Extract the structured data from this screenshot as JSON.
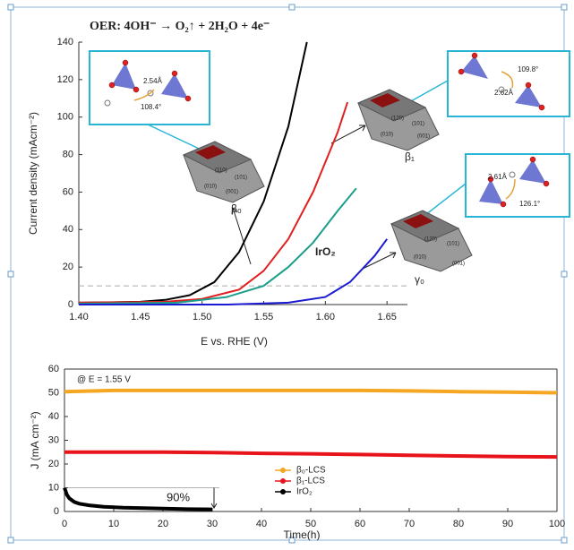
{
  "chart_data": [
    {
      "type": "line",
      "title": "OER: 4OH⁻ → O₂↑ + 2H₂O + 4e⁻",
      "x_label": "E vs. RHE (V)",
      "y_label": "Current density (mAcm⁻²)",
      "xlim": [
        1.4,
        1.7
      ],
      "xticks": [
        {
          "value": 1.4,
          "label": "1.40"
        },
        1.45,
        {
          "value": 1.5,
          "label": "1.50"
        },
        1.55,
        {
          "value": 1.6,
          "label": "1.60"
        },
        1.65
      ],
      "ylim": [
        0,
        140
      ],
      "yticks": [
        0,
        20,
        40,
        60,
        80,
        100,
        120,
        140
      ],
      "hline": 10,
      "series": [
        {
          "color": "#000000",
          "x": [
            1.4,
            1.45,
            1.47,
            1.49,
            1.51,
            1.53,
            1.55,
            1.57,
            1.585
          ],
          "values": [
            1,
            1.5,
            2.5,
            5,
            12,
            28,
            55,
            95,
            140
          ]
        },
        {
          "color": "#e02020",
          "x": [
            1.4,
            1.47,
            1.5,
            1.53,
            1.55,
            1.57,
            1.59,
            1.61,
            1.618
          ],
          "values": [
            1,
            1.5,
            3,
            8,
            18,
            35,
            60,
            92,
            108
          ]
        },
        {
          "color": "#1a9e8a",
          "x": [
            1.4,
            1.48,
            1.52,
            1.55,
            1.57,
            1.59,
            1.61,
            1.625
          ],
          "values": [
            0.5,
            1,
            4,
            10,
            20,
            33,
            50,
            62
          ]
        },
        {
          "color": "#1a1ad0",
          "x": [
            1.4,
            1.52,
            1.57,
            1.6,
            1.62,
            1.64,
            1.65
          ],
          "values": [
            0,
            0,
            1,
            4,
            12,
            26,
            35
          ]
        }
      ],
      "annotations": [
        "β₀",
        "β₁",
        "γ₀",
        "IrO₂",
        "2.54Å",
        "108.4°",
        "109.8°",
        "2.62Å",
        "2.61Å",
        "126.1°",
        "(110)",
        "(101)",
        "(010)",
        "(001)",
        "(120)",
        "(101)",
        "(010)",
        "(001)",
        "(120)",
        "(101)",
        "(010)",
        "(001)"
      ]
    },
    {
      "type": "line",
      "annotation": "@ E = 1.55 V",
      "note": "90%",
      "x_label": "Time(h)",
      "y_label": "J (mA cm⁻²)",
      "xlim": [
        0,
        100
      ],
      "xticks": [
        0,
        10,
        20,
        30,
        40,
        50,
        60,
        70,
        80,
        90,
        100
      ],
      "ylim": [
        0,
        60
      ],
      "yticks": [
        0,
        10,
        20,
        30,
        40,
        50,
        60
      ],
      "legend": "center",
      "series": [
        {
          "name": "β₀-LCS",
          "color": "#f5a623",
          "x": [
            0,
            10,
            20,
            30,
            40,
            50,
            60,
            70,
            80,
            90,
            100
          ],
          "values": [
            50.5,
            51,
            51,
            51,
            51,
            51,
            51,
            50.8,
            50.5,
            50.3,
            50
          ]
        },
        {
          "name": "β₁-LCS",
          "color": "#e8141b",
          "x": [
            0,
            10,
            20,
            30,
            40,
            50,
            60,
            70,
            80,
            90,
            100
          ],
          "values": [
            25,
            25,
            25,
            24.8,
            24.5,
            24.3,
            24,
            23.7,
            23.4,
            23.1,
            23
          ]
        },
        {
          "name": "IrO₂",
          "color": "#000000",
          "x": [
            0,
            0.5,
            1,
            2,
            3,
            5,
            8,
            12,
            16,
            20,
            25,
            30
          ],
          "values": [
            10,
            7,
            5.5,
            4,
            3.3,
            2.6,
            2,
            1.6,
            1.4,
            1.2,
            1,
            0.9
          ]
        }
      ]
    }
  ]
}
